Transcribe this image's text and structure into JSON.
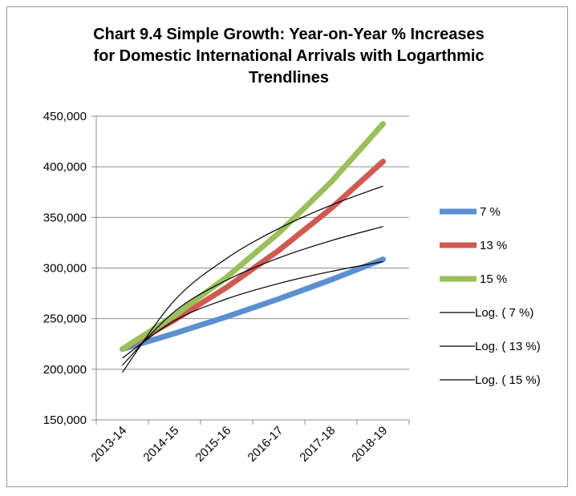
{
  "chart_data": {
    "type": "line",
    "title_lines": [
      "Chart 9.4 Simple Growth: Year-on-Year % Increases",
      "for Domestic International Arrivals with Logarthmic",
      "Trendlines"
    ],
    "categories": [
      "2013-14",
      "2014-15",
      "2015-16",
      "2016-17",
      "2017-18",
      "2018-19"
    ],
    "ylim": [
      150000,
      450000
    ],
    "yticks": [
      "150,000",
      "200,000",
      "250,000",
      "300,000",
      "350,000",
      "400,000",
      "450,000"
    ],
    "grid": true,
    "legend_position": "right",
    "series": [
      {
        "name": "7 %",
        "color": "#5b8fd0",
        "values": [
          220000,
          235400,
          251900,
          269500,
          288400,
          308600
        ]
      },
      {
        "name": "13 %",
        "color": "#cf5a52",
        "values": [
          220000,
          248600,
          280900,
          317400,
          358700,
          405300
        ]
      },
      {
        "name": "15 %",
        "color": "#9bbf5b",
        "values": [
          220000,
          253000,
          290950,
          334600,
          384800,
          442500
        ]
      }
    ],
    "trendlines": [
      {
        "name": "Log. ( 7 %)",
        "color": "#000000",
        "values": [
          211000,
          248000,
          269500,
          284700,
          296600,
          306300
        ]
      },
      {
        "name": "Log. ( 13 %)",
        "color": "#000000",
        "values": [
          204000,
          257000,
          288000,
          310000,
          327000,
          341000
        ]
      },
      {
        "name": "Log. ( 15 %)",
        "color": "#000000",
        "values": [
          197000,
          268000,
          309500,
          339000,
          362000,
          381000
        ]
      }
    ]
  }
}
